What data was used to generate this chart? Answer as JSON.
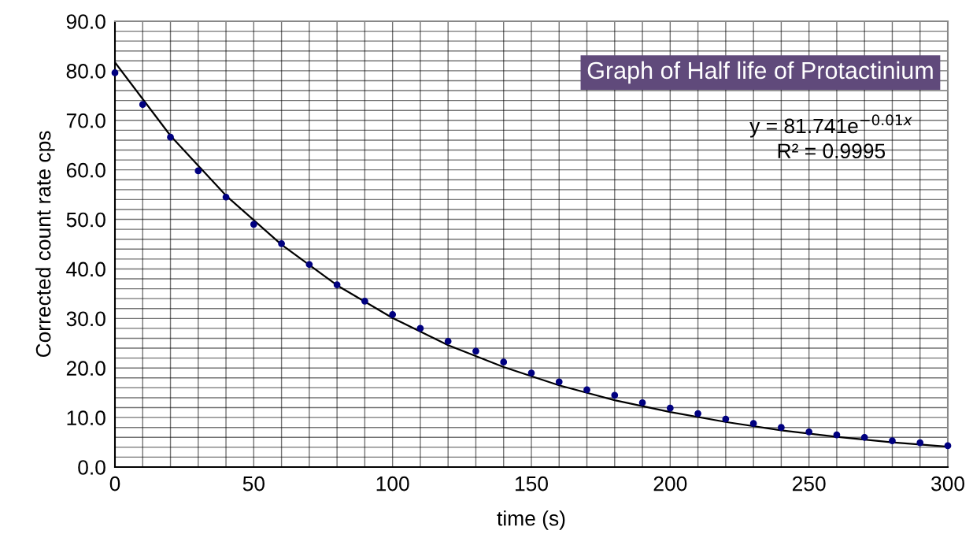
{
  "chart_data": {
    "type": "scatter",
    "xlabel": "time (s)",
    "ylabel": "Corrected count rate cps",
    "title": "Graph of Half life of Protactinium",
    "annotations": [
      "y = 81.741e$^{−0.01x}$",
      "R² = 0.9995"
    ],
    "x": [
      0,
      10,
      20,
      30,
      40,
      50,
      60,
      70,
      80,
      90,
      100,
      110,
      120,
      130,
      140,
      150,
      160,
      170,
      180,
      190,
      200,
      210,
      220,
      230,
      240,
      250,
      260,
      270,
      280,
      290,
      300
    ],
    "series": [
      {
        "color": "#000080",
        "marker": "circle",
        "values": [
          79.6,
          73.2,
          66.6,
          59.8,
          54.5,
          49.0,
          45.1,
          40.9,
          36.8,
          33.5,
          30.8,
          28.0,
          25.4,
          23.4,
          21.2,
          19.0,
          17.2,
          15.6,
          14.5,
          13.0,
          11.9,
          10.8,
          9.7,
          8.8,
          8.0,
          7.1,
          6.5,
          6.0,
          5.3,
          4.9,
          4.3
        ]
      },
      {
        "type": "line",
        "color": "#000000",
        "marker": "none",
        "x": [
          0,
          20,
          40,
          60,
          80,
          100,
          120,
          140,
          160,
          180,
          200,
          220,
          240,
          260,
          280,
          300
        ],
        "values": [
          81.7,
          66.9,
          54.8,
          44.9,
          36.7,
          30.1,
          24.6,
          20.2,
          16.5,
          13.5,
          11.1,
          9.1,
          7.4,
          6.1,
          5.0,
          4.1
        ]
      }
    ],
    "xlim": [
      0,
      300
    ],
    "ylim": [
      0,
      90
    ],
    "xticks": [
      0,
      {
        "value": 10,
        "label": null
      },
      {
        "value": 20,
        "label": null
      },
      {
        "value": 30,
        "label": null
      },
      {
        "value": 40,
        "label": null
      },
      50,
      {
        "value": 60,
        "label": null
      },
      {
        "value": 70,
        "label": null
      },
      {
        "value": 80,
        "label": null
      },
      {
        "value": 90,
        "label": null
      },
      100,
      {
        "value": 110,
        "label": null
      },
      {
        "value": 120,
        "label": null
      },
      {
        "value": 130,
        "label": null
      },
      {
        "value": 140,
        "label": null
      },
      150,
      {
        "value": 160,
        "label": null
      },
      {
        "value": 170,
        "label": null
      },
      {
        "value": 180,
        "label": null
      },
      {
        "value": 190,
        "label": null
      },
      200,
      {
        "value": 210,
        "label": null
      },
      {
        "value": 220,
        "label": null
      },
      {
        "value": 230,
        "label": null
      },
      {
        "value": 240,
        "label": null
      },
      250,
      {
        "value": 260,
        "label": null
      },
      {
        "value": 270,
        "label": null
      },
      {
        "value": 280,
        "label": null
      },
      {
        "value": 290,
        "label": null
      },
      300
    ],
    "yticks": [
      {
        "value": 0,
        "label": "0.0"
      },
      {
        "value": 2,
        "label": null
      },
      {
        "value": 4,
        "label": null
      },
      {
        "value": 6,
        "label": null
      },
      {
        "value": 8,
        "label": null
      },
      {
        "value": 10,
        "label": "10.0"
      },
      {
        "value": 12,
        "label": null
      },
      {
        "value": 14,
        "label": null
      },
      {
        "value": 16,
        "label": null
      },
      {
        "value": 18,
        "label": null
      },
      {
        "value": 20,
        "label": "20.0"
      },
      {
        "value": 22,
        "label": null
      },
      {
        "value": 24,
        "label": null
      },
      {
        "value": 26,
        "label": null
      },
      {
        "value": 28,
        "label": null
      },
      {
        "value": 30,
        "label": "30.0"
      },
      {
        "value": 32,
        "label": null
      },
      {
        "value": 34,
        "label": null
      },
      {
        "value": 36,
        "label": null
      },
      {
        "value": 38,
        "label": null
      },
      {
        "value": 40,
        "label": "40.0"
      },
      {
        "value": 42,
        "label": null
      },
      {
        "value": 44,
        "label": null
      },
      {
        "value": 46,
        "label": null
      },
      {
        "value": 48,
        "label": null
      },
      {
        "value": 50,
        "label": "50.0"
      },
      {
        "value": 52,
        "label": null
      },
      {
        "value": 54,
        "label": null
      },
      {
        "value": 56,
        "label": null
      },
      {
        "value": 58,
        "label": null
      },
      {
        "value": 60,
        "label": "60.0"
      },
      {
        "value": 62,
        "label": null
      },
      {
        "value": 64,
        "label": null
      },
      {
        "value": 66,
        "label": null
      },
      {
        "value": 68,
        "label": null
      },
      {
        "value": 70,
        "label": "70.0"
      },
      {
        "value": 72,
        "label": null
      },
      {
        "value": 74,
        "label": null
      },
      {
        "value": 76,
        "label": null
      },
      {
        "value": 78,
        "label": null
      },
      {
        "value": 80,
        "label": "80.0"
      },
      {
        "value": 82,
        "label": null
      },
      {
        "value": 84,
        "label": null
      },
      {
        "value": 86,
        "label": null
      },
      {
        "value": 88,
        "label": null
      },
      {
        "value": 90,
        "label": "90.0"
      }
    ],
    "grid": true
  }
}
